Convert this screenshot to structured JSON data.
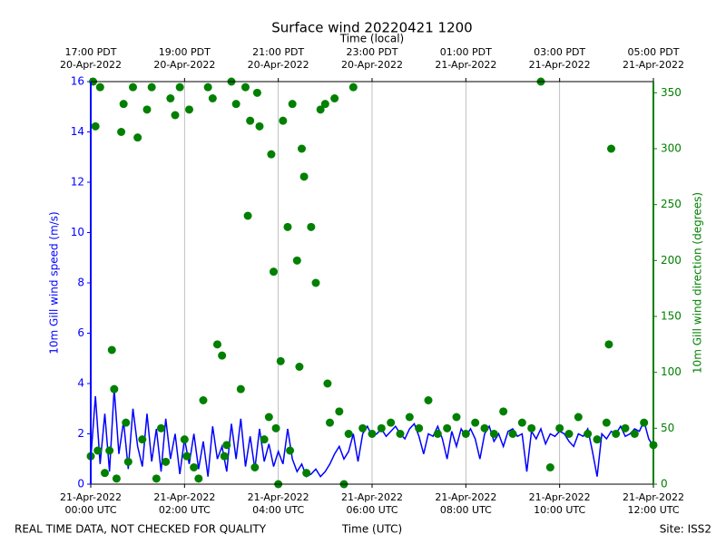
{
  "chart_data": {
    "type": "line",
    "title": "Surface wind 20220421 1200",
    "x_label": "Time (UTC)",
    "x2_label": "Time (local)",
    "y_label": "10m Gill wind speed (m/s)",
    "y2_label": "10m Gill wind direction (degrees)",
    "footer_left": "REAL TIME DATA, NOT CHECKED FOR QUALITY",
    "footer_right": "Site: ISS2",
    "xlim": [
      0,
      12
    ],
    "ylim": [
      0,
      16
    ],
    "y2lim": [
      0,
      360
    ],
    "grid": true,
    "xticks": [
      {
        "value": 0,
        "label": "21-Apr-2022\n00:00 UTC"
      },
      {
        "value": 2,
        "label": "21-Apr-2022\n02:00 UTC"
      },
      {
        "value": 4,
        "label": "21-Apr-2022\n04:00 UTC"
      },
      {
        "value": 6,
        "label": "21-Apr-2022\n06:00 UTC"
      },
      {
        "value": 8,
        "label": "21-Apr-2022\n08:00 UTC"
      },
      {
        "value": 10,
        "label": "21-Apr-2022\n10:00 UTC"
      },
      {
        "value": 12,
        "label": "21-Apr-2022\n12:00 UTC"
      }
    ],
    "x2ticks": [
      {
        "value": 0,
        "label": "17:00 PDT\n20-Apr-2022"
      },
      {
        "value": 2,
        "label": "19:00 PDT\n20-Apr-2022"
      },
      {
        "value": 4,
        "label": "21:00 PDT\n20-Apr-2022"
      },
      {
        "value": 6,
        "label": "23:00 PDT\n20-Apr-2022"
      },
      {
        "value": 8,
        "label": "01:00 PDT\n21-Apr-2022"
      },
      {
        "value": 10,
        "label": "03:00 PDT\n21-Apr-2022"
      },
      {
        "value": 12,
        "label": "05:00 PDT\n21-Apr-2022"
      }
    ],
    "yticks": [
      0,
      2,
      4,
      6,
      8,
      10,
      12,
      14,
      16
    ],
    "y2ticks": [
      0,
      50,
      100,
      150,
      200,
      250,
      300,
      350
    ],
    "x": [
      0,
      0.1,
      0.2,
      0.3,
      0.4,
      0.5,
      0.6,
      0.7,
      0.8,
      0.9,
      1,
      1.1,
      1.2,
      1.3,
      1.4,
      1.5,
      1.6,
      1.7,
      1.8,
      1.9,
      2,
      2.1,
      2.2,
      2.3,
      2.4,
      2.5,
      2.6,
      2.7,
      2.8,
      2.9,
      3,
      3.1,
      3.2,
      3.3,
      3.4,
      3.5,
      3.6,
      3.7,
      3.8,
      3.9,
      4,
      4.1,
      4.2,
      4.3,
      4.4,
      4.5,
      4.6,
      4.7,
      4.8,
      4.9,
      5,
      5.1,
      5.2,
      5.3,
      5.4,
      5.5,
      5.6,
      5.7,
      5.8,
      5.9,
      6,
      6.1,
      6.2,
      6.3,
      6.4,
      6.5,
      6.6,
      6.7,
      6.8,
      6.9,
      7,
      7.1,
      7.2,
      7.3,
      7.4,
      7.5,
      7.6,
      7.7,
      7.8,
      7.9,
      8,
      8.1,
      8.2,
      8.3,
      8.4,
      8.5,
      8.6,
      8.7,
      8.8,
      8.9,
      9,
      9.1,
      9.2,
      9.3,
      9.4,
      9.5,
      9.6,
      9.7,
      9.8,
      9.9,
      10,
      10.1,
      10.2,
      10.3,
      10.4,
      10.5,
      10.6,
      10.7,
      10.8,
      10.9,
      11,
      11.1,
      11.2,
      11.3,
      11.4,
      11.5,
      11.6,
      11.7,
      11.8,
      11.9,
      12
    ],
    "series": [
      {
        "type": "line",
        "color": "#0000ff",
        "axis": "y",
        "values": [
          1.0,
          3.5,
          0.8,
          2.8,
          0.5,
          3.8,
          1.2,
          2.5,
          0.6,
          3.0,
          1.5,
          0.7,
          2.8,
          0.9,
          2.2,
          0.5,
          2.6,
          1.0,
          2.0,
          0.4,
          1.8,
          0.8,
          2.0,
          0.6,
          1.7,
          0.3,
          2.3,
          1.0,
          1.5,
          0.5,
          2.4,
          1.0,
          2.6,
          0.7,
          1.9,
          0.6,
          2.2,
          0.9,
          1.6,
          0.7,
          1.3,
          0.8,
          2.2,
          1.0,
          0.5,
          0.8,
          0.3,
          0.4,
          0.6,
          0.3,
          0.5,
          0.8,
          1.2,
          1.5,
          1.0,
          1.3,
          2.0,
          0.9,
          2.0,
          2.3,
          1.9,
          2.0,
          2.2,
          1.9,
          2.1,
          2.3,
          2.0,
          1.8,
          2.2,
          2.4,
          1.9,
          1.2,
          2.0,
          1.9,
          2.3,
          1.8,
          1.0,
          2.1,
          1.5,
          2.2,
          1.9,
          2.2,
          1.8,
          1.0,
          2.0,
          2.3,
          1.7,
          2.0,
          1.5,
          2.1,
          2.2,
          1.9,
          2.0,
          0.5,
          2.1,
          1.8,
          2.2,
          1.6,
          2.0,
          1.9,
          2.1,
          2.0,
          1.7,
          1.5,
          2.0,
          1.9,
          2.2,
          1.3,
          0.3,
          2.0,
          1.8,
          2.1,
          2.0,
          2.3,
          1.9,
          2.0,
          2.2,
          2.1,
          2.5,
          1.8,
          1.5
        ]
      },
      {
        "type": "scatter",
        "color": "#008000",
        "axis": "y2",
        "x": [
          0,
          0.05,
          0.1,
          0.15,
          0.2,
          0.3,
          0.4,
          0.45,
          0.5,
          0.55,
          0.65,
          0.7,
          0.75,
          0.8,
          0.9,
          1,
          1.1,
          1.2,
          1.3,
          1.4,
          1.5,
          1.6,
          1.7,
          1.8,
          1.9,
          2,
          2.05,
          2.1,
          2.2,
          2.3,
          2.4,
          2.5,
          2.6,
          2.7,
          2.8,
          2.85,
          2.9,
          3,
          3.1,
          3.2,
          3.3,
          3.35,
          3.4,
          3.5,
          3.55,
          3.6,
          3.7,
          3.8,
          3.85,
          3.9,
          3.95,
          4,
          4.05,
          4.1,
          4.2,
          4.25,
          4.3,
          4.4,
          4.45,
          4.5,
          4.55,
          4.6,
          4.7,
          4.8,
          4.9,
          5,
          5.05,
          5.1,
          5.2,
          5.3,
          5.4,
          5.5,
          5.6,
          5.8,
          6,
          6.2,
          6.4,
          6.6,
          6.8,
          7,
          7.2,
          7.4,
          7.6,
          7.8,
          8,
          8.2,
          8.4,
          8.6,
          8.8,
          9,
          9.2,
          9.4,
          9.6,
          9.8,
          10,
          10.2,
          10.4,
          10.6,
          10.8,
          11,
          11.05,
          11.1,
          11.2,
          11.4,
          11.6,
          11.8,
          12
        ],
        "values": [
          25,
          360,
          320,
          30,
          355,
          10,
          30,
          120,
          85,
          5,
          315,
          340,
          55,
          20,
          355,
          310,
          40,
          335,
          355,
          5,
          50,
          20,
          345,
          330,
          355,
          40,
          25,
          335,
          15,
          5,
          75,
          355,
          345,
          125,
          115,
          25,
          35,
          360,
          340,
          85,
          355,
          240,
          325,
          15,
          350,
          320,
          40,
          60,
          295,
          190,
          50,
          0,
          110,
          325,
          230,
          30,
          340,
          200,
          105,
          300,
          275,
          10,
          230,
          180,
          335,
          340,
          90,
          55,
          345,
          65,
          0,
          45,
          355,
          50,
          45,
          50,
          55,
          45,
          60,
          50,
          75,
          45,
          50,
          60,
          45,
          55,
          50,
          45,
          65,
          45,
          55,
          50,
          360,
          15,
          50,
          45,
          60,
          45,
          40,
          55,
          125,
          300,
          45,
          50,
          45,
          55,
          35
        ]
      }
    ]
  }
}
